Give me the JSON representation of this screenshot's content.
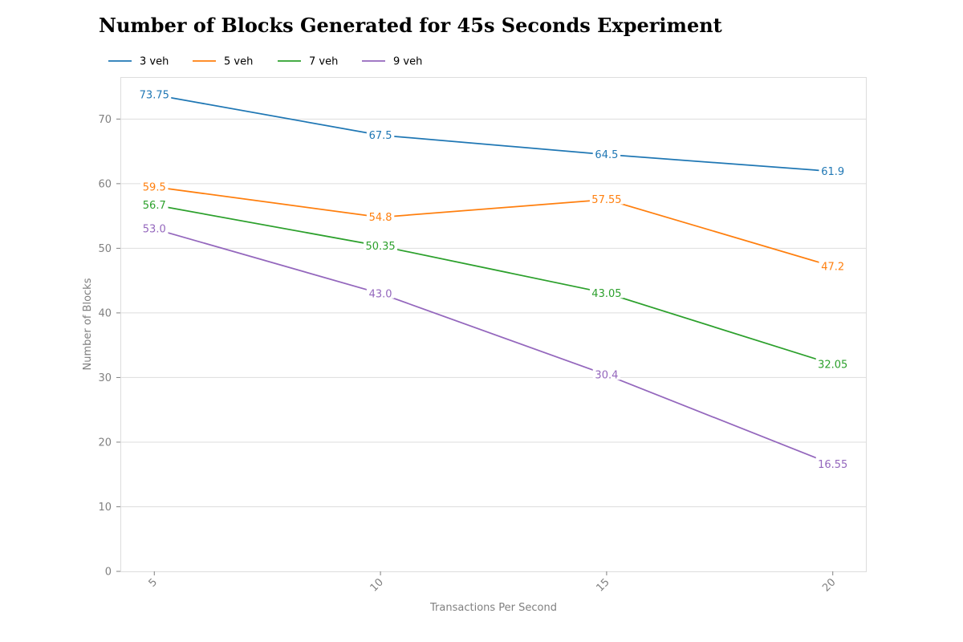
{
  "chart_data": {
    "type": "line",
    "title": "Number of Blocks Generated for 45s Seconds Experiment",
    "xlabel": "Transactions Per Second",
    "ylabel": "Number of Blocks",
    "x": [
      5,
      10,
      15,
      20
    ],
    "x_tick_labels": [
      "5",
      "10",
      "15",
      "20"
    ],
    "xlim": [
      4.25,
      20.75
    ],
    "ylim": [
      0,
      76.5
    ],
    "y_ticks": [
      0,
      10,
      20,
      30,
      40,
      50,
      60,
      70
    ],
    "y_tick_labels": [
      "0",
      "10",
      "20",
      "30",
      "40",
      "50",
      "60",
      "70"
    ],
    "grid": "horizontal",
    "legend_position": "top-left",
    "series": [
      {
        "name": "3 veh",
        "color": "#1f77b4",
        "values": [
          73.75,
          67.5,
          64.5,
          61.9
        ],
        "labels": [
          "73.75",
          "67.5",
          "64.5",
          "61.9"
        ]
      },
      {
        "name": "5 veh",
        "color": "#ff7f0e",
        "values": [
          59.5,
          54.8,
          57.55,
          47.2
        ],
        "labels": [
          "59.5",
          "54.8",
          "57.55",
          "47.2"
        ]
      },
      {
        "name": "7 veh",
        "color": "#2ca02c",
        "values": [
          56.7,
          50.35,
          43.05,
          32.05
        ],
        "labels": [
          "56.7",
          "50.35",
          "43.05",
          "32.05"
        ]
      },
      {
        "name": "9 veh",
        "color": "#9467bd",
        "values": [
          53.0,
          43.0,
          30.4,
          16.55
        ],
        "labels": [
          "53.0",
          "43.0",
          "30.4",
          "16.55"
        ]
      }
    ]
  }
}
